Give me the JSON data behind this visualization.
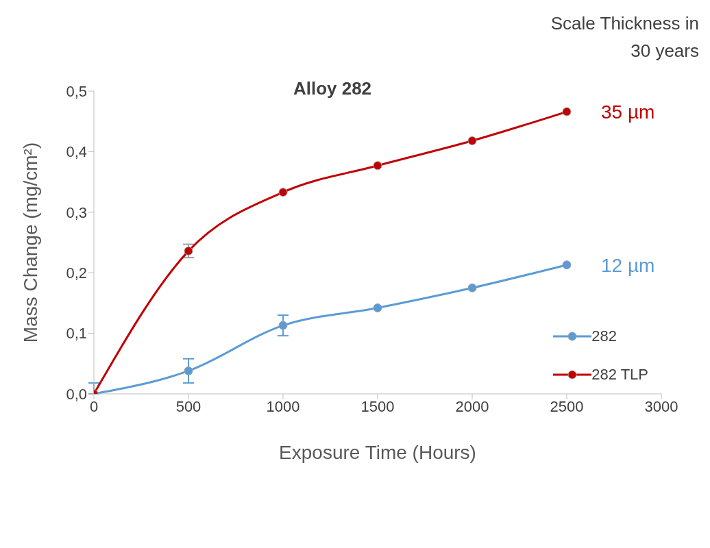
{
  "chart_data": {
    "type": "line",
    "title": "Alloy 282",
    "xlabel": "Exposure Time (Hours)",
    "ylabel": "Mass Change (mg/cm²)",
    "x": [
      0,
      500,
      1000,
      1500,
      2000,
      2500
    ],
    "series": [
      {
        "name": "282",
        "color": "#5b9bd5",
        "values": [
          0,
          0.038,
          0.113,
          0.142,
          0.175,
          0.213
        ],
        "errors": [
          [
            0,
            0.018
          ],
          0.02,
          0.017,
          null,
          null,
          null
        ]
      },
      {
        "name": "282 TLP",
        "color": "#c00000",
        "values": [
          0,
          0.236,
          0.333,
          0.377,
          0.418,
          0.466
        ],
        "errors": [
          null,
          0.011,
          null,
          null,
          null,
          null
        ]
      }
    ],
    "xlim": [
      0,
      3000
    ],
    "xticks": [
      0,
      500,
      1000,
      1500,
      2000,
      2500,
      3000
    ],
    "ylim": [
      0,
      0.5
    ],
    "yticks": [
      {
        "value": 0,
        "label": "0,0"
      },
      {
        "value": 0.1,
        "label": "0,1"
      },
      {
        "value": 0.2,
        "label": "0,2"
      },
      {
        "value": 0.3,
        "label": "0,3"
      },
      {
        "value": 0.4,
        "label": "0,4"
      },
      {
        "value": 0.5,
        "label": "0,5"
      }
    ],
    "annotations": [
      "Scale Thickness in 30 years",
      {
        "text": "35 µm",
        "x": 2500,
        "y": 0.466
      },
      {
        "text": "12 µm",
        "x": 2500,
        "y": 0.213
      }
    ],
    "grid": false,
    "legend": "bottom right",
    "marker": "circle",
    "line_style": "solid"
  }
}
